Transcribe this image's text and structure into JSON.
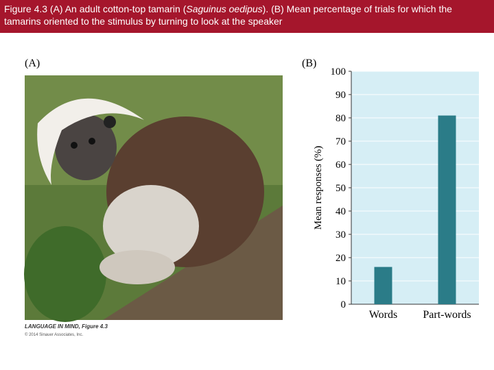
{
  "caption": [
    "Figure 4.3  (A) An adult cotton-top tamarin (",
    "Saguinus oedipus",
    "). (B) Mean percentage of trials for which the tamarins oriented to the stimulus by turning to look at the speaker"
  ],
  "panel_a_label": "(A)",
  "credit": {
    "title": "LANGUAGE IN MIND, Figure 4.3",
    "copyright": "© 2014 Sinauer Associates, Inc."
  },
  "chart_data": {
    "type": "bar",
    "panel_label": "(B)",
    "y_label": "Mean responses (%)",
    "categories": [
      "Words",
      "Part-words"
    ],
    "values": [
      16,
      81
    ],
    "color": "#2b7c88",
    "ylim": [
      0,
      100
    ],
    "yticks": [
      0,
      10,
      20,
      30,
      40,
      50,
      60,
      70,
      80,
      90,
      100
    ],
    "grid": true
  }
}
